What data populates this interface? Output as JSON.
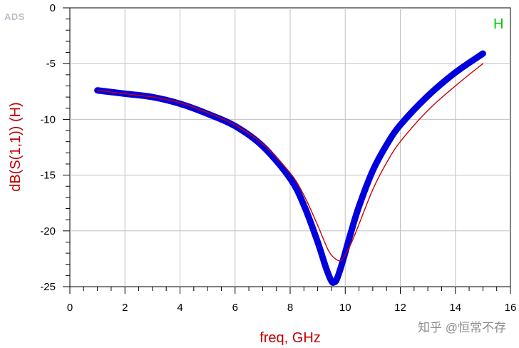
{
  "logo_text": "ADS",
  "watermark": "知乎 @恒常不存",
  "chart_data": {
    "type": "line",
    "xlabel": "freq, GHz",
    "ylabel": "dB(S(1,1)) (H)",
    "xlim": [
      0,
      16
    ],
    "ylim": [
      -25,
      0
    ],
    "x_ticks": [
      "0",
      "2",
      "4",
      "6",
      "8",
      "10",
      "12",
      "14",
      "16"
    ],
    "y_ticks": [
      "0",
      "-5",
      "-10",
      "-15",
      "-20",
      "-25"
    ],
    "grid": true,
    "series_label": "H",
    "series": [
      {
        "color": "#0000dd",
        "x": [
          1,
          2,
          3,
          4,
          5,
          6,
          7,
          8,
          8.5,
          9,
          9.3,
          9.5,
          9.6,
          9.7,
          9.9,
          10.2,
          10.5,
          11,
          11.5,
          12,
          13,
          14,
          15
        ],
        "y": [
          -7.4,
          -7.7,
          -8.0,
          -8.6,
          -9.5,
          -10.6,
          -12.4,
          -15.3,
          -17.7,
          -21.0,
          -23.3,
          -24.5,
          -24.6,
          -24.3,
          -22.8,
          -20.2,
          -17.8,
          -14.6,
          -12.3,
          -10.5,
          -7.9,
          -5.8,
          -4.1
        ]
      },
      {
        "color": "#cc0000",
        "x": [
          1,
          2,
          3,
          4,
          5,
          6,
          7,
          8,
          8.5,
          9,
          9.4,
          9.7,
          9.9,
          10.2,
          10.5,
          11,
          11.5,
          12,
          13,
          14,
          15
        ],
        "y": [
          -7.4,
          -7.7,
          -8.0,
          -8.5,
          -9.4,
          -10.5,
          -12.2,
          -14.8,
          -16.8,
          -19.5,
          -21.8,
          -22.6,
          -22.5,
          -21.2,
          -19.4,
          -16.3,
          -13.9,
          -12.0,
          -9.2,
          -7.0,
          -5.0
        ]
      }
    ]
  }
}
